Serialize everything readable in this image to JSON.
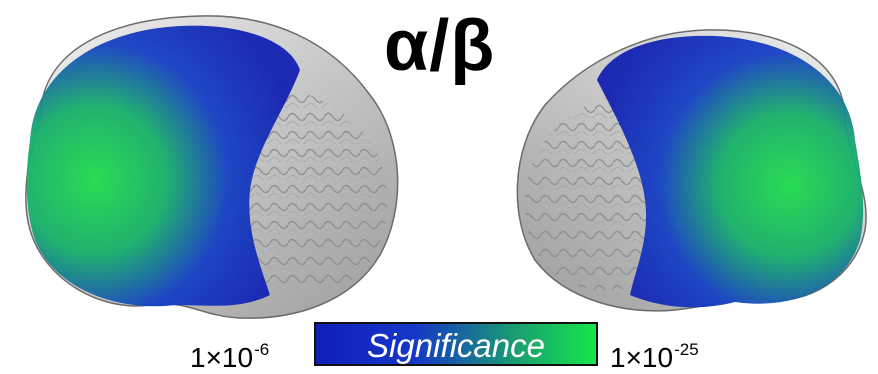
{
  "title": "α/β",
  "colorbar": {
    "label": "Significance",
    "min_base": "1×10",
    "min_exp": "-6",
    "max_base": "1×10",
    "max_exp": "-25",
    "color_low": "#0f1fb8",
    "color_high": "#16e64a"
  },
  "brains": [
    {
      "view": "left-lateral",
      "description_tag": "left-hemisphere"
    },
    {
      "view": "right-lateral",
      "description_tag": "right-hemisphere"
    }
  ],
  "colors": {
    "cortex": "#d9d9d9",
    "background": "#ffffff",
    "text": "#000000"
  }
}
